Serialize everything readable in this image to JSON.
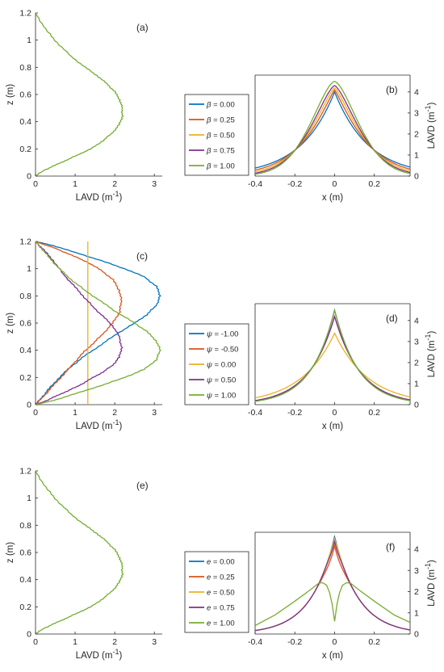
{
  "colors": {
    "c1": "#0072BD",
    "c2": "#D95319",
    "c3": "#EDB120",
    "c4": "#7E2F8E",
    "c5": "#77AC30"
  },
  "chart_data": [
    {
      "id": "a",
      "type": "line",
      "panel_label": "(a)",
      "xlabel": "LAVD (m",
      "xlabel_sup": "-1",
      "xlabel_end": ")",
      "ylabel": "z (m)",
      "xlim": [
        0,
        3.2
      ],
      "ylim": [
        0,
        1.2
      ],
      "xticks": [
        0,
        1,
        2,
        3
      ],
      "yticks": [
        0,
        0.2,
        0.4,
        0.6,
        0.8,
        1.0,
        1.2
      ],
      "series": [
        {
          "color": "c5",
          "x": [
            0,
            0.2,
            0.5,
            0.8,
            1.1,
            1.4,
            1.7,
            1.95,
            2.12,
            2.19,
            2.19,
            2.13,
            2.0,
            1.8,
            1.55,
            1.25,
            0.9,
            0.55,
            0.25,
            0
          ],
          "y": [
            0,
            0.04,
            0.08,
            0.12,
            0.16,
            0.2,
            0.26,
            0.32,
            0.38,
            0.44,
            0.5,
            0.56,
            0.62,
            0.68,
            0.74,
            0.8,
            0.88,
            0.98,
            1.08,
            1.2
          ]
        }
      ]
    },
    {
      "id": "b",
      "type": "line",
      "panel_label": "(b)",
      "xlabel": "x (m)",
      "ylabel": "LAVD (m",
      "ylabel_sup": "-1",
      "ylabel_end": ")",
      "y_axis_side": "right",
      "xlim": [
        -0.4,
        0.38
      ],
      "ylim": [
        0,
        4.8
      ],
      "xticks": [
        -0.4,
        -0.2,
        0,
        0.2
      ],
      "yticks": [
        0,
        1,
        2,
        3,
        4
      ],
      "legend": {
        "placement": "outside-left",
        "entries": [
          {
            "symbol": "β",
            "label": " = 0.00",
            "color": "c1"
          },
          {
            "symbol": "β",
            "label": " = 0.25",
            "color": "c2"
          },
          {
            "symbol": "β",
            "label": " = 0.50",
            "color": "c3"
          },
          {
            "symbol": "β",
            "label": " = 0.75",
            "color": "c4"
          },
          {
            "symbol": "β",
            "label": " = 1.00",
            "color": "c5"
          }
        ]
      },
      "series": [
        {
          "color": "c1",
          "peak": 4.0,
          "w": 0.17,
          "p": 1.0
        },
        {
          "color": "c2",
          "peak": 4.1,
          "w": 0.17,
          "p": 1.15
        },
        {
          "color": "c3",
          "peak": 4.2,
          "w": 0.17,
          "p": 1.3
        },
        {
          "color": "c4",
          "peak": 4.3,
          "w": 0.17,
          "p": 1.45
        },
        {
          "color": "c5",
          "peak": 4.5,
          "w": 0.17,
          "p": 1.6
        }
      ]
    },
    {
      "id": "c",
      "type": "line",
      "panel_label": "(c)",
      "xlabel": "LAVD (m",
      "xlabel_sup": "-1",
      "xlabel_end": ")",
      "ylabel": "z (m)",
      "xlim": [
        0,
        3.2
      ],
      "ylim": [
        0,
        1.2
      ],
      "xticks": [
        0,
        1,
        2,
        3
      ],
      "yticks": [
        0,
        0.2,
        0.4,
        0.6,
        0.8,
        1.0,
        1.2
      ],
      "series": [
        {
          "color": "c1",
          "x": [
            0,
            0.15,
            0.35,
            0.6,
            0.9,
            1.25,
            1.65,
            2.05,
            2.45,
            2.8,
            3.05,
            3.15,
            3.05,
            2.75,
            2.25,
            1.65,
            1.0,
            0.45,
            0
          ],
          "y": [
            0,
            0.05,
            0.12,
            0.2,
            0.28,
            0.36,
            0.44,
            0.52,
            0.59,
            0.66,
            0.73,
            0.8,
            0.87,
            0.94,
            1.0,
            1.06,
            1.12,
            1.17,
            1.2
          ]
        },
        {
          "color": "c2",
          "x": [
            0,
            0.2,
            0.45,
            0.7,
            0.95,
            1.2,
            1.45,
            1.7,
            1.95,
            2.12,
            2.17,
            2.12,
            1.95,
            1.65,
            1.3,
            0.9,
            0.5,
            0.2,
            0
          ],
          "y": [
            0,
            0.06,
            0.14,
            0.22,
            0.3,
            0.38,
            0.45,
            0.52,
            0.6,
            0.68,
            0.76,
            0.84,
            0.92,
            0.99,
            1.05,
            1.1,
            1.15,
            1.18,
            1.2
          ]
        },
        {
          "color": "c3",
          "x": [
            1.32,
            1.32
          ],
          "y": [
            0,
            1.2
          ]
        },
        {
          "color": "c4",
          "x": [
            0,
            0.2,
            0.5,
            0.8,
            1.1,
            1.4,
            1.7,
            1.95,
            2.12,
            2.17,
            2.12,
            1.95,
            1.7,
            1.45,
            1.2,
            0.95,
            0.7,
            0.45,
            0.2,
            0
          ],
          "y": [
            0,
            0.02,
            0.06,
            0.1,
            0.14,
            0.19,
            0.24,
            0.29,
            0.35,
            0.42,
            0.5,
            0.58,
            0.65,
            0.72,
            0.8,
            0.88,
            0.96,
            1.06,
            1.14,
            1.2
          ]
        },
        {
          "color": "c5",
          "x": [
            0,
            0.45,
            1.0,
            1.65,
            2.25,
            2.75,
            3.05,
            3.15,
            3.05,
            2.8,
            2.45,
            2.05,
            1.65,
            1.25,
            0.9,
            0.6,
            0.35,
            0.15,
            0
          ],
          "y": [
            0,
            0.03,
            0.08,
            0.14,
            0.2,
            0.26,
            0.33,
            0.4,
            0.47,
            0.54,
            0.61,
            0.68,
            0.76,
            0.84,
            0.92,
            1.0,
            1.08,
            1.15,
            1.2
          ]
        }
      ]
    },
    {
      "id": "d",
      "type": "line",
      "panel_label": "(d)",
      "xlabel": "x (m)",
      "ylabel": "LAVD (m",
      "ylabel_sup": "-1",
      "ylabel_end": ")",
      "y_axis_side": "right",
      "xlim": [
        -0.4,
        0.38
      ],
      "ylim": [
        0,
        4.8
      ],
      "xticks": [
        -0.4,
        -0.2,
        0,
        0.2
      ],
      "yticks": [
        0,
        1,
        2,
        3,
        4
      ],
      "legend": {
        "placement": "outside-left",
        "entries": [
          {
            "symbol": "ψ",
            "label": " = -1.00",
            "color": "c1"
          },
          {
            "symbol": "ψ",
            "label": " = -0.50",
            "color": "c2"
          },
          {
            "symbol": "ψ",
            "label": " = 0.00",
            "color": "c3"
          },
          {
            "symbol": "ψ",
            "label": " = 0.50",
            "color": "c4"
          },
          {
            "symbol": "ψ",
            "label": " = 1.00",
            "color": "c5"
          }
        ]
      },
      "series": [
        {
          "color": "c3",
          "peak": 3.4,
          "w": 0.17,
          "p": 1.0
        },
        {
          "color": "c2",
          "peak": 4.2,
          "w": 0.13,
          "p": 1.0
        },
        {
          "color": "c4",
          "peak": 4.2,
          "w": 0.13,
          "p": 1.0
        },
        {
          "color": "c1",
          "peak": 4.5,
          "w": 0.12,
          "p": 1.0
        },
        {
          "color": "c5",
          "peak": 4.5,
          "w": 0.12,
          "p": 1.0
        }
      ]
    },
    {
      "id": "e",
      "type": "line",
      "panel_label": "(e)",
      "xlabel": "LAVD (m",
      "xlabel_sup": "-1",
      "xlabel_end": ")",
      "ylabel": "z (m)",
      "xlim": [
        0,
        3.2
      ],
      "ylim": [
        0,
        1.2
      ],
      "xticks": [
        0,
        1,
        2,
        3
      ],
      "yticks": [
        0,
        0.2,
        0.4,
        0.6,
        0.8,
        1.0,
        1.2
      ],
      "series": [
        {
          "color": "c5",
          "x": [
            0,
            0.2,
            0.5,
            0.8,
            1.1,
            1.4,
            1.7,
            1.95,
            2.12,
            2.19,
            2.19,
            2.13,
            2.0,
            1.8,
            1.55,
            1.25,
            0.9,
            0.55,
            0.25,
            0
          ],
          "y": [
            0,
            0.04,
            0.08,
            0.12,
            0.16,
            0.2,
            0.26,
            0.32,
            0.38,
            0.44,
            0.5,
            0.56,
            0.62,
            0.68,
            0.74,
            0.8,
            0.88,
            0.98,
            1.08,
            1.2
          ]
        }
      ]
    },
    {
      "id": "f",
      "type": "line",
      "panel_label": "(f)",
      "xlabel": "x (m)",
      "ylabel": "LAVD (m",
      "ylabel_sup": "-1",
      "ylabel_end": ")",
      "y_axis_side": "right",
      "xlim": [
        -0.4,
        0.38
      ],
      "ylim": [
        0,
        4.8
      ],
      "xticks": [
        -0.4,
        -0.2,
        0,
        0.2
      ],
      "yticks": [
        0,
        1,
        2,
        3,
        4
      ],
      "legend": {
        "placement": "outside-left",
        "entries": [
          {
            "symbol": "e",
            "label": " = 0.00",
            "color": "c1"
          },
          {
            "symbol": "e",
            "label": " = 0.25",
            "color": "c2"
          },
          {
            "symbol": "e",
            "label": " = 0.50",
            "color": "c3"
          },
          {
            "symbol": "e",
            "label": " = 0.75",
            "color": "c4"
          },
          {
            "symbol": "e",
            "label": " = 1.00",
            "color": "c5"
          }
        ]
      },
      "series": [
        {
          "color": "c1",
          "peak": 4.6,
          "w": 0.12,
          "p": 1.0,
          "dip": 0.0,
          "dw": 0.05
        },
        {
          "color": "c2",
          "peak": 4.6,
          "w": 0.12,
          "p": 1.0,
          "dip": 0.45,
          "dw": 0.05
        },
        {
          "color": "c3",
          "peak": 4.6,
          "w": 0.12,
          "p": 1.0,
          "dip": 0.1,
          "dw": 0.012
        },
        {
          "color": "c4",
          "peak": 4.6,
          "w": 0.12,
          "p": 1.0,
          "dip": 0.24,
          "dw": 0.03
        },
        {
          "color": "c5",
          "profile": "double",
          "x": [
            -0.4,
            -0.3,
            -0.2,
            -0.12,
            -0.08,
            -0.06,
            -0.04,
            -0.025,
            -0.012,
            0,
            0.012,
            0.025,
            0.04,
            0.06,
            0.08,
            0.12,
            0.2,
            0.3,
            0.38
          ],
          "y": [
            0.4,
            0.9,
            1.55,
            2.1,
            2.4,
            2.42,
            2.3,
            1.95,
            1.4,
            0.6,
            1.4,
            1.95,
            2.3,
            2.42,
            2.4,
            2.1,
            1.55,
            0.9,
            0.55
          ]
        }
      ]
    }
  ]
}
